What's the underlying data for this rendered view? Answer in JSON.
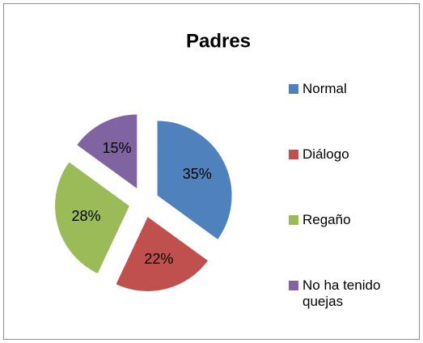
{
  "chart_data": {
    "type": "pie",
    "title": "Padres",
    "categories": [
      "Normal",
      "Diálogo",
      "Regaño",
      "No ha tenido quejas"
    ],
    "values": [
      35,
      22,
      28,
      15
    ],
    "value_labels": [
      "35%",
      "22%",
      "28%",
      "15%"
    ],
    "colors": [
      "#4f81bd",
      "#c0504d",
      "#9bbb59",
      "#8064a2"
    ],
    "legend": "right"
  }
}
